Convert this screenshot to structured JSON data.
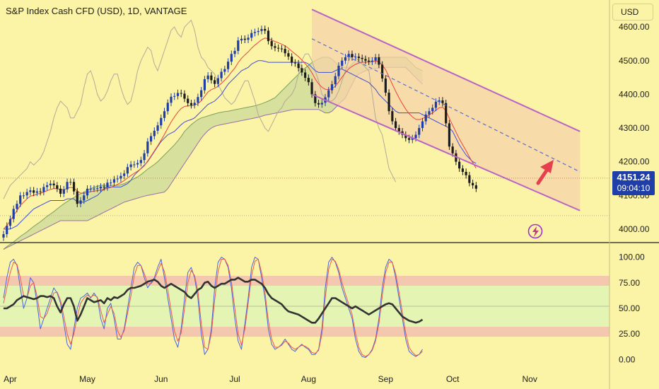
{
  "header": {
    "title": "S&P Index Cash CFD (USD), 1D, VANTAGE",
    "currency_button": "USD"
  },
  "last_price": {
    "value": "4151.24",
    "countdown": "09:04:10"
  },
  "colors": {
    "background": "#fbf3a6",
    "candle_up": "#1f3ea8",
    "candle_down": "#1c1c1c",
    "ema": "#e8453c",
    "kijun": "#3f4fd8",
    "chikou": "#b0ab98",
    "cloud_fill": "#b9cf93",
    "channel": "#b865c6",
    "channel_fill": "#f6d3a8",
    "arrow": "#e63f4d",
    "stoch_k": "#4a64e0",
    "stoch_d": "#ee5a4c",
    "rsi": "#333333",
    "band_overbought": "#f3c8ae",
    "band_middle": "#e4f5b3",
    "price_tag": "#1f3ea8"
  },
  "icons": {
    "lightning": "lightning-icon",
    "arrow": "up-right-arrow-icon"
  },
  "chart_data": [
    {
      "type": "candlestick",
      "panel": "price",
      "title": "S&P Index Cash CFD (USD), 1D, VANTAGE",
      "ylim": [
        3960,
        4680
      ],
      "y_ticks": [
        "4000.00",
        "4100.00",
        "4200.00",
        "4300.00",
        "4400.00",
        "4500.00",
        "4600.00"
      ],
      "x_ticks": [
        "Apr",
        "May",
        "Jun",
        "Jul",
        "Aug",
        "Sep",
        "Oct",
        "Nov"
      ],
      "x_tick_day_index": [
        2,
        25,
        47,
        69,
        91,
        114,
        134,
        157
      ],
      "close": [
        3985,
        4010,
        4030,
        4060,
        4075,
        4100,
        4100,
        4110,
        4115,
        4108,
        4112,
        4110,
        4125,
        4130,
        4135,
        4130,
        4120,
        4105,
        4118,
        4140,
        4140,
        4112,
        4075,
        4085,
        4100,
        4120,
        4120,
        4120,
        4121,
        4126,
        4124,
        4138,
        4138,
        4148,
        4150,
        4158,
        4165,
        4184,
        4192,
        4192,
        4196,
        4205,
        4225,
        4260,
        4276,
        4292,
        4308,
        4330,
        4350,
        4375,
        4393,
        4395,
        4404,
        4402,
        4387,
        4374,
        4368,
        4375,
        4392,
        4412,
        4445,
        4456,
        4442,
        4431,
        4448,
        4467,
        4475,
        4497,
        4520,
        4529,
        4560,
        4565,
        4562,
        4568,
        4582,
        4585,
        4588,
        4594,
        4589,
        4558,
        4543,
        4538,
        4536,
        4535,
        4522,
        4512,
        4494,
        4492,
        4478,
        4465,
        4449,
        4436,
        4400,
        4374,
        4370,
        4375,
        4391,
        4412,
        4430,
        4454,
        4485,
        4500,
        4510,
        4520,
        4510,
        4512,
        4508,
        4505,
        4500,
        4497,
        4500,
        4510,
        4488,
        4447,
        4405,
        4350,
        4320,
        4300,
        4290,
        4280,
        4270,
        4265,
        4270,
        4280,
        4300,
        4320,
        4340,
        4350,
        4360,
        4378,
        4382,
        4374,
        4314,
        4245,
        4225,
        4200,
        4180,
        4170,
        4160,
        4137,
        4130,
        4120
      ],
      "ema": [
        4000,
        4010,
        4025,
        4040,
        4055,
        4070,
        4080,
        4090,
        4098,
        4100,
        4104,
        4106,
        4110,
        4114,
        4118,
        4120,
        4120,
        4117,
        4117,
        4121,
        4124,
        4122,
        4113,
        4107,
        4106,
        4109,
        4111,
        4113,
        4114,
        4116,
        4118,
        4121,
        4124,
        4128,
        4133,
        4138,
        4144,
        4152,
        4159,
        4166,
        4172,
        4179,
        4188,
        4202,
        4217,
        4232,
        4247,
        4264,
        4281,
        4300,
        4318,
        4333,
        4347,
        4358,
        4364,
        4366,
        4366,
        4368,
        4372,
        4381,
        4394,
        4407,
        4414,
        4418,
        4424,
        4433,
        4442,
        4453,
        4466,
        4478,
        4494,
        4507,
        4517,
        4526,
        4537,
        4546,
        4554,
        4562,
        4567,
        4565,
        4561,
        4557,
        4553,
        4549,
        4544,
        4537,
        4528,
        4520,
        4512,
        4502,
        4491,
        4480,
        4464,
        4446,
        4431,
        4421,
        4415,
        4414,
        4417,
        4424,
        4437,
        4451,
        4464,
        4476,
        4483,
        4489,
        4493,
        4495,
        4496,
        4496,
        4497,
        4499,
        4497,
        4487,
        4473,
        4452,
        4430,
        4409,
        4390,
        4372,
        4356,
        4343,
        4333,
        4326,
        4325,
        4328,
        4333,
        4339,
        4345,
        4353,
        4360,
        4362,
        4351,
        4329,
        4308,
        4288,
        4268,
        4250,
        4233,
        4214,
        4197,
        4181
      ],
      "kijun": [
        4000,
        4000,
        4000,
        4005,
        4010,
        4020,
        4030,
        4040,
        4050,
        4060,
        4065,
        4070,
        4075,
        4080,
        4085,
        4085,
        4085,
        4085,
        4085,
        4090,
        4090,
        4090,
        4080,
        4080,
        4080,
        4085,
        4090,
        4095,
        4100,
        4110,
        4120,
        4125,
        4125,
        4125,
        4125,
        4125,
        4130,
        4135,
        4145,
        4160,
        4170,
        4180,
        4190,
        4200,
        4215,
        4230,
        4245,
        4260,
        4270,
        4280,
        4285,
        4290,
        4300,
        4310,
        4318,
        4322,
        4325,
        4330,
        4340,
        4350,
        4360,
        4370,
        4375,
        4380,
        4390,
        4400,
        4415,
        4430,
        4440,
        4450,
        4460,
        4470,
        4475,
        4480,
        4490,
        4495,
        4500,
        4500,
        4498,
        4495,
        4495,
        4495,
        4495,
        4495,
        4495,
        4495,
        4495,
        4495,
        4495,
        4495,
        4495,
        4490,
        4480,
        4470,
        4465,
        4465,
        4465,
        4465,
        4465,
        4470,
        4475,
        4475,
        4470,
        4465,
        4460,
        4455,
        4450,
        4445,
        4440,
        4435,
        4425,
        4415,
        4400,
        4390,
        4380,
        4370,
        4360,
        4350,
        4345,
        4345,
        4345,
        4345,
        4345,
        4345,
        4345,
        4340,
        4335,
        4330,
        4325,
        4320,
        4315,
        4310,
        4305,
        4300,
        4290,
        4270,
        4250,
        4235,
        4220,
        4210,
        4200,
        4195
      ],
      "chikou_start_day": 0,
      "chikou": [
        4090,
        4110,
        4130,
        4140,
        4150,
        4160,
        4170,
        4180,
        4200,
        4190,
        4200,
        4210,
        4230,
        4260,
        4290,
        4330,
        4360,
        4380,
        4370,
        4360,
        4330,
        4330,
        4350,
        4370,
        4420,
        4460,
        4470,
        4440,
        4400,
        4380,
        4390,
        4410,
        4440,
        4460,
        4460,
        4420,
        4390,
        4370,
        4380,
        4420,
        4470,
        4500,
        4520,
        4540,
        4530,
        4490,
        4470,
        4500,
        4530,
        4560,
        4590,
        4600,
        4580,
        4570,
        4600,
        4610,
        4620,
        4590,
        4540,
        4510,
        4500,
        4480,
        4470,
        4460,
        4430,
        4410,
        4390,
        4380,
        4370,
        4380,
        4400,
        4420,
        4440,
        4440,
        4410,
        4380,
        4340,
        4320,
        4300,
        4290,
        4310,
        4330,
        4350,
        4360,
        4380,
        4390,
        4400,
        4420,
        4460,
        4500,
        4520,
        4520,
        4500,
        4470,
        4440,
        4400,
        4390,
        4380,
        4380,
        4390,
        4410,
        4440,
        4470,
        4500,
        4520,
        4510,
        4500,
        4490,
        4480,
        4470,
        4400,
        4330,
        4300,
        4280,
        4230,
        4180,
        4160,
        4140
      ],
      "cloud_upper": [
        3940,
        3948,
        3955,
        3962,
        3970,
        3978,
        3985,
        3992,
        4000,
        4008,
        4015,
        4022,
        4030,
        4038,
        4045,
        4052,
        4060,
        4068,
        4075,
        4082,
        4088,
        4094,
        4100,
        4105,
        4110,
        4115,
        4120,
        4124,
        4127,
        4130,
        4130,
        4130,
        4130,
        4130,
        4130,
        4132,
        4135,
        4140,
        4145,
        4150,
        4155,
        4162,
        4170,
        4178,
        4185,
        4192,
        4200,
        4210,
        4220,
        4230,
        4240,
        4250,
        4262,
        4275,
        4290,
        4300,
        4310,
        4318,
        4325,
        4330,
        4333,
        4336,
        4339,
        4342,
        4345,
        4347,
        4349,
        4350,
        4352,
        4354,
        4356,
        4358,
        4360,
        4362,
        4364,
        4366,
        4369,
        4372,
        4376,
        4380,
        4385,
        4390,
        4400,
        4410,
        4420,
        4430,
        4440,
        4450,
        4460,
        4470,
        4478,
        4486,
        4494,
        4500,
        4505,
        4510,
        4510,
        4510,
        4505,
        4495,
        4485,
        4480,
        4480,
        4480,
        4490,
        4500,
        4506,
        4510,
        4510,
        4510,
        4510,
        4510,
        4510,
        4510,
        4510,
        4510,
        4510,
        4510,
        4510,
        4510,
        4510,
        4500,
        4490,
        4480,
        4475,
        4470
      ],
      "cloud_lower": [
        3940,
        3945,
        3950,
        3955,
        3960,
        3965,
        3970,
        3975,
        3980,
        3985,
        3990,
        3995,
        4000,
        4005,
        4010,
        4015,
        4020,
        4025,
        4025,
        4025,
        4025,
        4025,
        4025,
        4025,
        4025,
        4025,
        4030,
        4035,
        4040,
        4045,
        4050,
        4055,
        4060,
        4065,
        4070,
        4075,
        4080,
        4083,
        4086,
        4089,
        4092,
        4095,
        4098,
        4100,
        4102,
        4104,
        4106,
        4108,
        4110,
        4120,
        4135,
        4150,
        4165,
        4180,
        4195,
        4210,
        4225,
        4240,
        4255,
        4270,
        4282,
        4292,
        4300,
        4305,
        4308,
        4310,
        4312,
        4314,
        4316,
        4318,
        4320,
        4322,
        4324,
        4326,
        4328,
        4330,
        4332,
        4335,
        4338,
        4340,
        4342,
        4344,
        4346,
        4348,
        4350,
        4352,
        4354,
        4355,
        4355,
        4355,
        4355,
        4355,
        4355,
        4355,
        4355,
        4350,
        4345,
        4345,
        4350,
        4360,
        4370,
        4380,
        4390,
        4410,
        4430,
        4450,
        4460,
        4465,
        4470,
        4473,
        4475,
        4477,
        4478,
        4479,
        4480,
        4480,
        4480,
        4480,
        4480,
        4480,
        4480,
        4470,
        4460,
        4450,
        4440,
        4430
      ],
      "channel": {
        "upper": {
          "from_day": 92,
          "from": 4652,
          "to_day": 172,
          "to": 4290
        },
        "mid": {
          "from_day": 92,
          "from": 4565,
          "to_day": 172,
          "to": 4170
        },
        "lower": {
          "from_day": 92,
          "from": 4400,
          "to_day": 172,
          "to": 4055
        }
      },
      "horizontal_levels": [
        4151.24,
        4040
      ]
    },
    {
      "type": "line",
      "panel": "oscillator",
      "ylim": [
        -8,
        108
      ],
      "y_ticks": [
        "0.00",
        "25.00",
        "50.00",
        "75.00",
        "100.00"
      ],
      "bands": {
        "overbought": [
          70,
          80
        ],
        "middle": [
          30,
          70
        ],
        "oversold": [
          20,
          30
        ]
      },
      "series": [
        {
          "key": "stoch_k",
          "values": [
            60,
            80,
            95,
            98,
            92,
            70,
            50,
            60,
            80,
            75,
            55,
            30,
            40,
            50,
            60,
            70,
            65,
            55,
            35,
            15,
            10,
            30,
            50,
            60,
            62,
            65,
            60,
            65,
            60,
            40,
            30,
            50,
            55,
            40,
            20,
            20,
            30,
            50,
            70,
            90,
            95,
            92,
            80,
            70,
            75,
            80,
            90,
            98,
            80,
            60,
            40,
            20,
            12,
            30,
            60,
            85,
            90,
            80,
            60,
            25,
            5,
            10,
            30,
            70,
            95,
            100,
            98,
            90,
            70,
            40,
            18,
            10,
            35,
            60,
            90,
            100,
            98,
            80,
            60,
            30,
            15,
            10,
            12,
            15,
            20,
            15,
            10,
            8,
            12,
            15,
            12,
            10,
            5,
            5,
            10,
            30,
            70,
            95,
            100,
            95,
            85,
            70,
            60,
            50,
            40,
            20,
            8,
            3,
            2,
            5,
            10,
            20,
            40,
            70,
            90,
            98,
            95,
            80,
            60,
            40,
            20,
            8,
            5,
            3,
            5,
            10
          ]
        },
        {
          "key": "stoch_d",
          "values": [
            55,
            70,
            85,
            95,
            93,
            80,
            62,
            60,
            72,
            75,
            62,
            42,
            40,
            45,
            55,
            65,
            66,
            58,
            42,
            25,
            15,
            25,
            42,
            55,
            60,
            63,
            61,
            63,
            61,
            48,
            36,
            44,
            52,
            45,
            28,
            22,
            28,
            45,
            62,
            82,
            92,
            92,
            84,
            74,
            74,
            78,
            86,
            94,
            86,
            68,
            48,
            28,
            18,
            26,
            50,
            75,
            87,
            82,
            67,
            35,
            12,
            10,
            25,
            58,
            86,
            98,
            98,
            92,
            76,
            50,
            25,
            14,
            30,
            55,
            82,
            96,
            98,
            85,
            66,
            38,
            20,
            12,
            12,
            14,
            18,
            16,
            12,
            10,
            12,
            14,
            13,
            11,
            7,
            6,
            9,
            25,
            60,
            88,
            98,
            96,
            88,
            75,
            64,
            54,
            44,
            26,
            12,
            5,
            3,
            5,
            9,
            18,
            35,
            62,
            85,
            95,
            95,
            84,
            66,
            46,
            26,
            12,
            7,
            4,
            5,
            8
          ]
        },
        {
          "key": "rsi",
          "values": [
            50,
            50,
            52,
            54,
            58,
            60,
            62,
            61,
            60,
            59,
            60,
            62,
            62,
            61,
            62,
            60,
            52,
            46,
            54,
            60,
            60,
            52,
            38,
            44,
            52,
            60,
            58,
            56,
            57,
            58,
            55,
            60,
            58,
            61,
            60,
            62,
            64,
            68,
            70,
            70,
            71,
            72,
            74,
            76,
            77,
            78,
            76,
            72,
            70,
            72,
            74,
            72,
            70,
            68,
            66,
            62,
            60,
            64,
            68,
            70,
            75,
            76,
            72,
            70,
            72,
            74,
            74,
            76,
            78,
            78,
            80,
            78,
            76,
            76,
            78,
            78,
            76,
            74,
            70,
            64,
            60,
            58,
            56,
            54,
            50,
            47,
            46,
            45,
            44,
            42,
            40,
            38,
            36,
            36,
            40,
            45,
            50,
            55,
            60,
            60,
            58,
            56,
            54,
            52,
            50,
            52,
            50,
            48,
            46,
            44,
            46,
            48,
            50,
            52,
            54,
            55,
            54,
            50,
            46,
            42,
            40,
            38,
            37,
            36,
            37,
            39
          ]
        }
      ]
    }
  ]
}
